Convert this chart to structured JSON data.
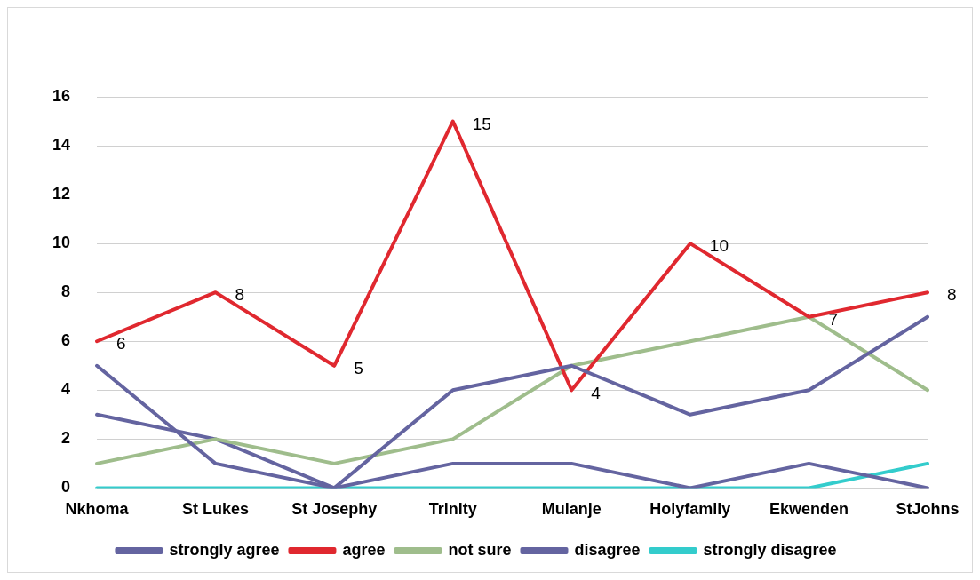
{
  "chart_data": {
    "type": "line",
    "categories": [
      "Nkhoma",
      "St Lukes",
      "St Josephy",
      "Trinity",
      "Mulanje",
      "Holyfamily",
      "Ekwenden",
      "StJohns"
    ],
    "series": [
      {
        "name": "strongly agree",
        "color": "#6464a0",
        "values": [
          5,
          1,
          0,
          4,
          5,
          3,
          4,
          7
        ]
      },
      {
        "name": "agree",
        "color": "#e0282f",
        "values": [
          6,
          8,
          5,
          15,
          4,
          10,
          7,
          8
        ],
        "value_labels": [
          "6",
          "8",
          "5",
          "15",
          "4",
          "10",
          "7",
          "8"
        ]
      },
      {
        "name": "not sure",
        "color": "#9fbd8c",
        "values": [
          1,
          2,
          1,
          2,
          5,
          6,
          7,
          4
        ]
      },
      {
        "name": "disagree",
        "color": "#6464a0",
        "values": [
          3,
          2,
          0,
          1,
          1,
          0,
          1,
          0
        ]
      },
      {
        "name": "strongly disagree",
        "color": "#33cccc",
        "values": [
          0,
          0,
          0,
          0,
          0,
          0,
          0,
          1
        ]
      }
    ],
    "ylim": [
      0,
      16
    ],
    "yticks": [
      0,
      2,
      4,
      6,
      8,
      10,
      12,
      14,
      16
    ],
    "grid": "y",
    "legend": "bottom",
    "marker": "none",
    "line_style": "solid"
  }
}
